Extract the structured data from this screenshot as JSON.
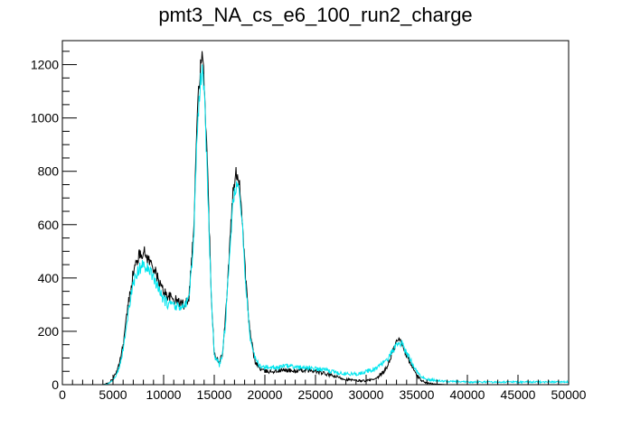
{
  "chart_data": {
    "type": "line",
    "title": "pmt3_NA_cs_e6_100_run2_charge",
    "xlabel": "",
    "ylabel": "",
    "xlim": [
      0,
      50000
    ],
    "ylim": [
      0,
      1290
    ],
    "grid": false,
    "legend": "none",
    "x_ticks": [
      0,
      5000,
      10000,
      15000,
      20000,
      25000,
      30000,
      35000,
      40000,
      45000,
      50000
    ],
    "x_tick_labels": [
      "0",
      "5000",
      "10000",
      "15000",
      "20000",
      "25000",
      "30000",
      "35000",
      "40000",
      "45000",
      "50000"
    ],
    "y_ticks": [
      0,
      200,
      400,
      600,
      800,
      1000,
      1200
    ],
    "y_tick_labels": [
      "0",
      "200",
      "400",
      "600",
      "800",
      "1000",
      "1200"
    ],
    "series": [
      {
        "color": "#000000",
        "x": [
          0,
          4000,
          4500,
          5000,
          5500,
          6000,
          6500,
          7000,
          7500,
          8000,
          8500,
          9000,
          9500,
          10000,
          10500,
          11000,
          11500,
          12000,
          12500,
          13000,
          13300,
          13600,
          13800,
          14000,
          14300,
          14700,
          15000,
          15500,
          15800,
          16100,
          16500,
          16800,
          17200,
          17500,
          17800,
          18100,
          18500,
          19000,
          19500,
          20000,
          21000,
          22000,
          23000,
          24000,
          25000,
          26000,
          27000,
          28000,
          29000,
          30000,
          31000,
          32000,
          32500,
          33000,
          33300,
          33600,
          34000,
          34500,
          35000,
          35500,
          36000,
          37000,
          38000,
          40000,
          45000,
          50000
        ],
        "y": [
          0,
          0,
          5,
          20,
          60,
          150,
          300,
          420,
          480,
          500,
          470,
          440,
          390,
          350,
          330,
          320,
          310,
          300,
          330,
          600,
          1000,
          1180,
          1220,
          1150,
          850,
          350,
          120,
          80,
          120,
          250,
          500,
          700,
          800,
          760,
          600,
          400,
          200,
          90,
          60,
          50,
          50,
          55,
          50,
          55,
          50,
          40,
          30,
          20,
          15,
          15,
          20,
          60,
          110,
          160,
          170,
          150,
          110,
          70,
          35,
          15,
          6,
          2,
          0,
          0,
          0,
          0
        ]
      },
      {
        "color": "#00e5ee",
        "x": [
          0,
          4000,
          4500,
          5000,
          5500,
          6000,
          6500,
          7000,
          7500,
          8000,
          8500,
          9000,
          9500,
          10000,
          10500,
          11000,
          11500,
          12000,
          12500,
          13000,
          13300,
          13600,
          13800,
          14000,
          14300,
          14700,
          15000,
          15500,
          15800,
          16100,
          16500,
          16800,
          17200,
          17500,
          17800,
          18100,
          18500,
          19000,
          19500,
          20000,
          21000,
          22000,
          23000,
          24000,
          25000,
          26000,
          27000,
          28000,
          29000,
          30000,
          31000,
          32000,
          32500,
          33000,
          33300,
          33600,
          34000,
          34500,
          35000,
          35500,
          36000,
          37000,
          38000,
          40000,
          45000,
          50000
        ],
        "y": [
          0,
          0,
          3,
          15,
          50,
          130,
          270,
          380,
          430,
          450,
          430,
          400,
          360,
          320,
          300,
          295,
          290,
          290,
          320,
          560,
          950,
          1120,
          1180,
          1100,
          800,
          330,
          110,
          75,
          110,
          230,
          470,
          660,
          760,
          720,
          580,
          380,
          190,
          100,
          70,
          65,
          65,
          70,
          65,
          65,
          60,
          55,
          45,
          40,
          40,
          50,
          60,
          90,
          120,
          150,
          160,
          150,
          120,
          85,
          50,
          30,
          20,
          15,
          12,
          10,
          10,
          10
        ]
      }
    ]
  }
}
